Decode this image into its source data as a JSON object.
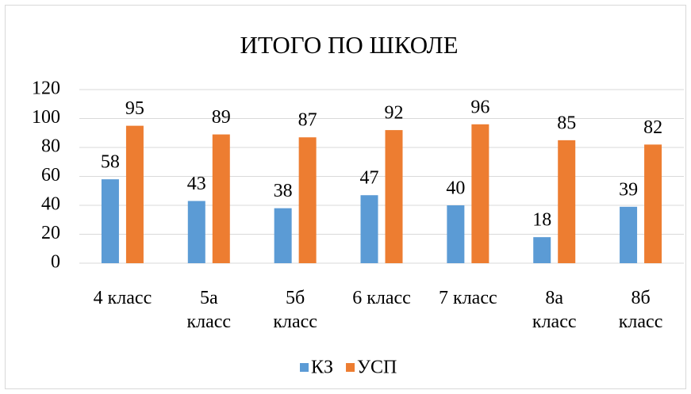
{
  "chart_data": {
    "type": "bar",
    "title": "ИТОГО ПО ШКОЛЕ",
    "categories": [
      "4 класс",
      "5а класс",
      "5б класс",
      "6 класс",
      "7 класс",
      "8а класс",
      "8б класс"
    ],
    "series": [
      {
        "name": "КЗ",
        "color": "#5b9bd5",
        "values": [
          58,
          43,
          38,
          47,
          40,
          18,
          39
        ]
      },
      {
        "name": "УСП",
        "color": "#ed7d31",
        "values": [
          95,
          89,
          87,
          92,
          96,
          85,
          82
        ]
      }
    ],
    "ylim": [
      0,
      120
    ],
    "yticks": [
      0,
      20,
      40,
      60,
      80,
      100,
      120
    ],
    "grid": true,
    "legend": "bottom"
  }
}
